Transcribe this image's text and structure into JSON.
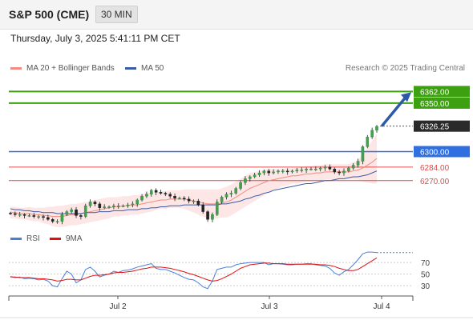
{
  "header": {
    "instrument": "S&P 500 (CME)",
    "timeframe": "30 MIN"
  },
  "datetime": "Thursday, July 3, 2025 5:41:11 PM CET",
  "legend": {
    "ma20": {
      "label": "MA 20 + Bollinger Bands",
      "color": "#f28b82"
    },
    "ma50": {
      "label": "MA 50",
      "color": "#3b5ba5"
    },
    "source": "Research © 2025 Trading Central"
  },
  "rsi_legend": {
    "rsi": {
      "label": "RSI",
      "color": "#4a7fd8"
    },
    "ma9": {
      "label": "9MA",
      "color": "#e01010"
    }
  },
  "chart_data": {
    "type": "candlestick",
    "y_range": [
      6217,
      6378
    ],
    "x_ticks": [
      "Jul 2",
      "Jul 3",
      "Jul 4"
    ],
    "current_price": "6326.25",
    "levels": [
      {
        "value": 6362.0,
        "label": "6362.00",
        "kind": "resistance",
        "color": "#3ca010"
      },
      {
        "value": 6350.0,
        "label": "6350.00",
        "kind": "resistance",
        "color": "#3ca010"
      },
      {
        "value": 6300.0,
        "label": "6300.00",
        "kind": "pivot",
        "color": "#2f6fe0"
      },
      {
        "value": 6284.0,
        "label": "6284.00",
        "kind": "support",
        "color": "#e04a4a"
      },
      {
        "value": 6270.0,
        "label": "6270.00",
        "kind": "support",
        "color": "#e04a4a"
      }
    ],
    "arrow": {
      "from": 6326.25,
      "to": 6362.0,
      "color": "#2b5aa8"
    },
    "close_series": [
      6236,
      6235,
      6235,
      6234,
      6234,
      6233,
      6233,
      6232,
      6230,
      6228,
      6228,
      6235,
      6238,
      6240,
      6234,
      6233,
      6244,
      6248,
      6246,
      6242,
      6243,
      6243,
      6244,
      6244,
      6244,
      6245,
      6246,
      6250,
      6254,
      6256,
      6260,
      6258,
      6257,
      6256,
      6254,
      6252,
      6252,
      6251,
      6249,
      6249,
      6245,
      6238,
      6230,
      6235,
      6248,
      6253,
      6256,
      6257,
      6262,
      6268,
      6272,
      6274,
      6276,
      6278,
      6280,
      6278,
      6279,
      6280,
      6280,
      6279,
      6280,
      6281,
      6281,
      6282,
      6282,
      6282,
      6283,
      6284,
      6282,
      6279,
      6278,
      6280,
      6283,
      6286,
      6290,
      6305,
      6315,
      6322,
      6326
    ],
    "ma20_series": [
      6237,
      6237,
      6236,
      6236,
      6236,
      6235,
      6235,
      6234,
      6234,
      6233,
      6233,
      6233,
      6234,
      6235,
      6235,
      6236,
      6237,
      6238,
      6239,
      6240,
      6241,
      6242,
      6243,
      6243,
      6244,
      6244,
      6245,
      6245,
      6246,
      6247,
      6248,
      6249,
      6250,
      6250,
      6251,
      6251,
      6251,
      6251,
      6250,
      6249,
      6248,
      6247,
      6246,
      6246,
      6246,
      6247,
      6248,
      6250,
      6253,
      6256,
      6259,
      6262,
      6264,
      6266,
      6268,
      6270,
      6271,
      6272,
      6273,
      6274,
      6275,
      6275,
      6276,
      6277,
      6277,
      6278,
      6278,
      6279,
      6279,
      6279,
      6279,
      6279,
      6279,
      6280,
      6281,
      6283,
      6286,
      6289,
      6293
    ],
    "ma50_series": [
      6241,
      6240,
      6240,
      6239,
      6239,
      6238,
      6238,
      6237,
      6237,
      6237,
      6236,
      6236,
      6236,
      6236,
      6236,
      6236,
      6237,
      6237,
      6237,
      6238,
      6238,
      6238,
      6239,
      6239,
      6239,
      6240,
      6240,
      6240,
      6241,
      6241,
      6242,
      6242,
      6243,
      6243,
      6244,
      6244,
      6244,
      6245,
      6245,
      6245,
      6245,
      6245,
      6245,
      6245,
      6245,
      6246,
      6246,
      6247,
      6248,
      6249,
      6251,
      6252,
      6254,
      6255,
      6257,
      6258,
      6260,
      6261,
      6262,
      6263,
      6264,
      6265,
      6266,
      6267,
      6267,
      6268,
      6269,
      6270,
      6270,
      6271,
      6272,
      6272,
      6273,
      6274,
      6274,
      6275,
      6276,
      6278,
      6280
    ],
    "band_width_series": [
      6,
      6,
      6,
      6,
      7,
      7,
      7,
      8,
      9,
      10,
      11,
      11,
      11,
      11,
      11,
      11,
      11,
      11,
      11,
      11,
      11,
      11,
      10,
      10,
      10,
      10,
      10,
      10,
      10,
      10,
      10,
      9,
      9,
      9,
      9,
      9,
      9,
      10,
      11,
      12,
      13,
      14,
      15,
      15,
      15,
      15,
      16,
      16,
      16,
      16,
      16,
      16,
      15,
      14,
      13,
      12,
      11,
      10,
      9,
      9,
      8,
      8,
      8,
      8,
      8,
      8,
      8,
      8,
      8,
      8,
      8,
      8,
      8,
      9,
      10,
      14,
      18,
      22,
      26
    ],
    "rsi": {
      "y_range": [
        15,
        95
      ],
      "ticks": [
        30,
        50,
        70
      ],
      "rsi_series": [
        46,
        44,
        45,
        42,
        43,
        42,
        40,
        41,
        38,
        30,
        28,
        42,
        55,
        50,
        35,
        40,
        58,
        62,
        55,
        45,
        48,
        50,
        55,
        53,
        56,
        57,
        59,
        62,
        64,
        66,
        68,
        60,
        58,
        58,
        55,
        52,
        48,
        44,
        41,
        40,
        35,
        28,
        25,
        38,
        58,
        60,
        62,
        62,
        66,
        68,
        69,
        70,
        70,
        70,
        70,
        66,
        68,
        68,
        67,
        66,
        66,
        67,
        67,
        68,
        68,
        66,
        65,
        64,
        60,
        52,
        48,
        54,
        58,
        66,
        75,
        85,
        88,
        88,
        87
      ],
      "ma9_series": [
        45,
        45,
        44,
        44,
        44,
        43,
        42,
        42,
        41,
        40,
        38,
        39,
        41,
        41,
        40,
        40,
        43,
        46,
        48,
        48,
        49,
        50,
        52,
        53,
        53,
        54,
        55,
        57,
        59,
        60,
        62,
        62,
        62,
        61,
        60,
        58,
        56,
        54,
        51,
        49,
        46,
        43,
        40,
        38,
        39,
        42,
        46,
        50,
        55,
        60,
        63,
        66,
        67,
        68,
        69,
        69,
        68,
        68,
        68,
        67,
        67,
        67,
        67,
        67,
        67,
        67,
        66,
        66,
        65,
        63,
        60,
        58,
        56,
        56,
        58,
        63,
        68,
        73,
        78
      ]
    }
  }
}
